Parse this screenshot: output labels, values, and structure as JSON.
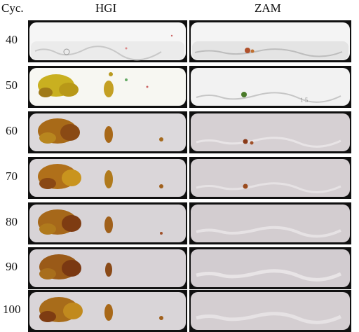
{
  "headers": {
    "cycle": "Cyc.",
    "hgi": "HGI",
    "zam": "ZAM"
  },
  "rows": [
    {
      "cycle": "40"
    },
    {
      "cycle": "50"
    },
    {
      "cycle": "60"
    },
    {
      "cycle": "70"
    },
    {
      "cycle": "80"
    },
    {
      "cycle": "90"
    },
    {
      "cycle": "100"
    }
  ],
  "colors": {
    "panel_border": "#101010",
    "bright_surface": "#f4f4f4",
    "aged_surface": "#d4cfd2",
    "rust_yellow": "#c9a21a",
    "rust_brown": "#7a3a12",
    "green_spot": "#4a7a2a"
  }
}
